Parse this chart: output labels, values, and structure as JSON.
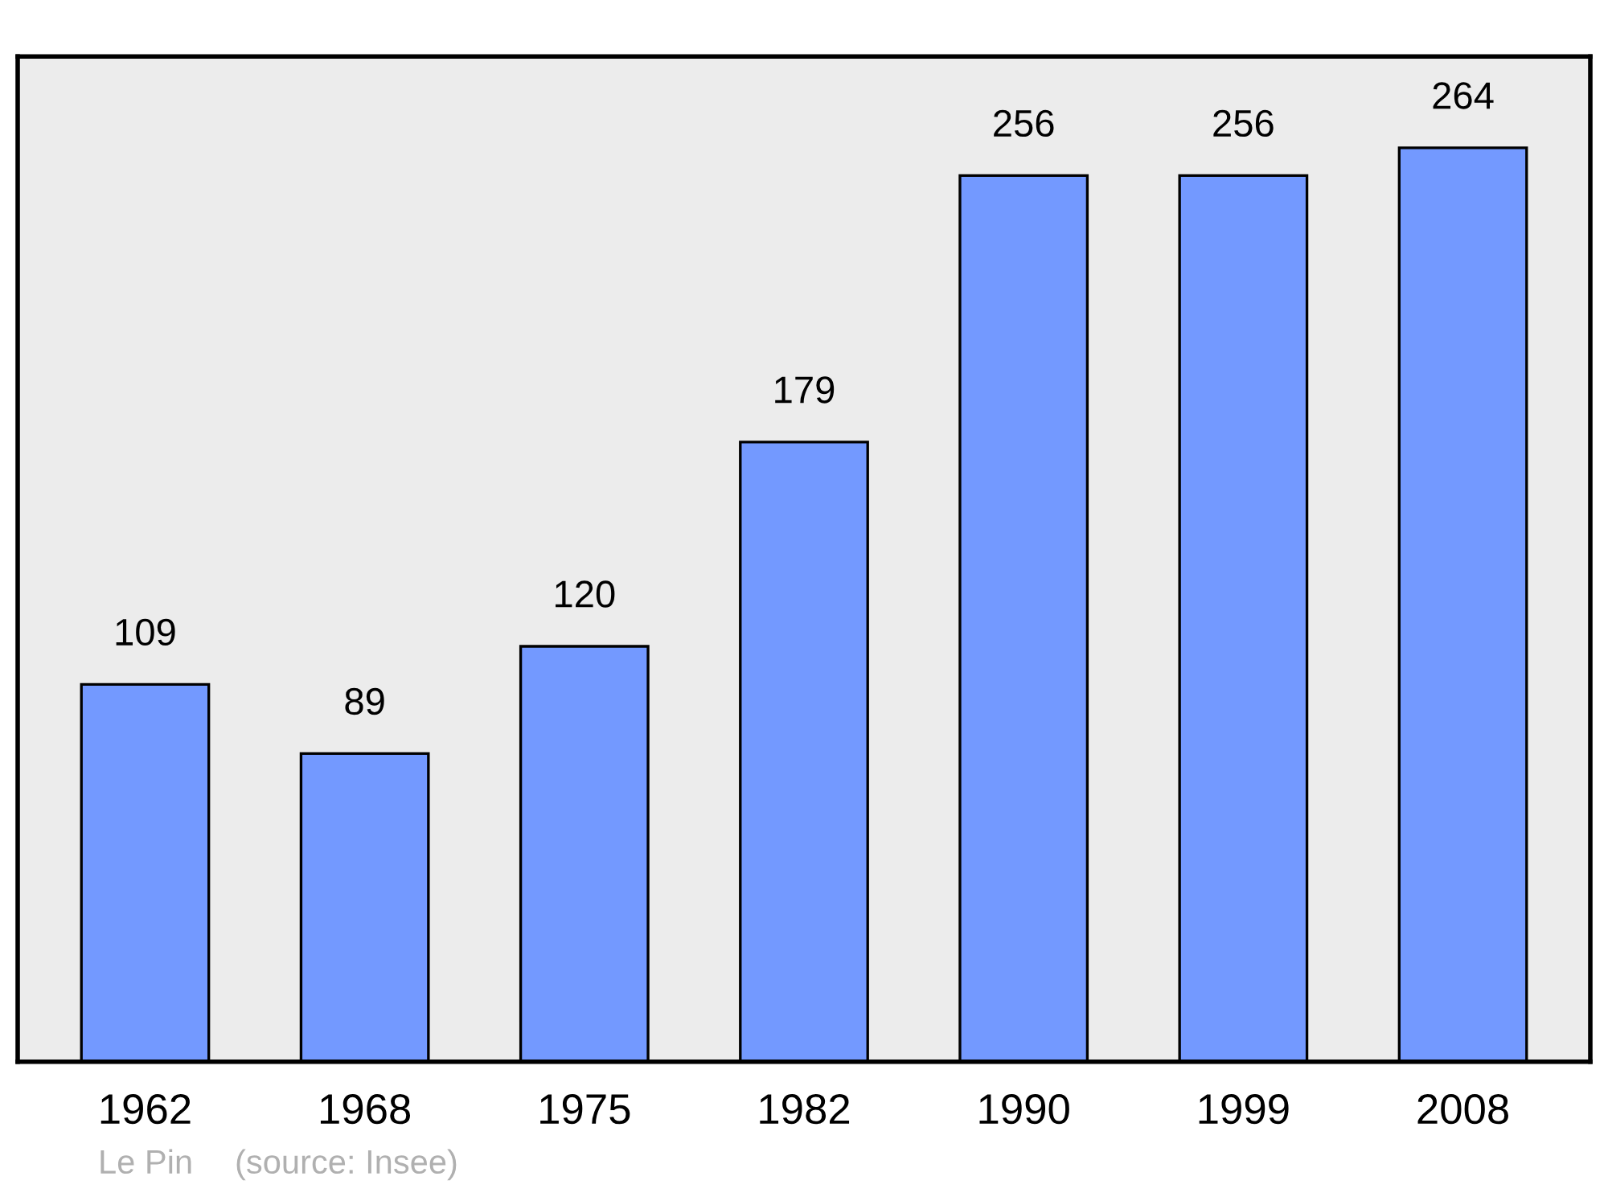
{
  "chart_data": {
    "type": "bar",
    "categories": [
      "1962",
      "1968",
      "1975",
      "1982",
      "1990",
      "1999",
      "2008"
    ],
    "values": [
      109,
      89,
      120,
      179,
      256,
      256,
      264
    ],
    "color": "#7399ff",
    "data_labels": true,
    "grid": false,
    "annotations": [
      "Le Pin",
      "(source: Insee)"
    ]
  }
}
